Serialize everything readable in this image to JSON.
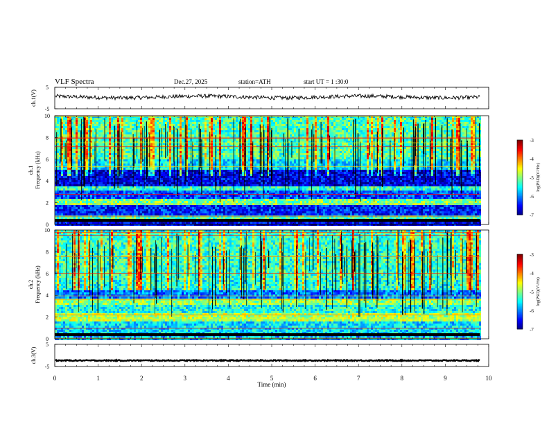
{
  "header": {
    "title": "VLF  Spectra",
    "date": "Dec.27, 2025",
    "station": "station=ATH",
    "start_ut": "start  UT  =    1  :30:0"
  },
  "chart_data": [
    {
      "type": "line",
      "name": "ch1-waveform",
      "ylabel": "ch.1(V)",
      "ylim": [
        -5,
        5
      ],
      "yticks": [
        "5",
        "-5"
      ],
      "xlim": [
        0,
        10
      ],
      "baseline_level": 0.5,
      "clipped_end_min": 9.8
    },
    {
      "type": "heatmap",
      "name": "ch1-spectrogram",
      "ylabel_top": "ch.1",
      "ylabel": "Frequency  (kHz)",
      "ylim": [
        0,
        10
      ],
      "yticks": [
        "0",
        "2",
        "4",
        "6",
        "8",
        "10"
      ],
      "xlim": [
        0,
        10
      ],
      "colorbar": {
        "label": "log(PSD)(V²/Hz)",
        "ticks": [
          "-3",
          "-4",
          "-5",
          "-6",
          "-7"
        ],
        "range": [
          -7,
          -3
        ]
      },
      "bands": [
        {
          "from_khz": 0.0,
          "to_khz": 0.6,
          "level": -6.6
        },
        {
          "from_khz": 0.6,
          "to_khz": 1.0,
          "level": -5.2
        },
        {
          "from_khz": 1.0,
          "to_khz": 1.8,
          "level": -6.4
        },
        {
          "from_khz": 1.8,
          "to_khz": 2.4,
          "level": -5.0
        },
        {
          "from_khz": 2.4,
          "to_khz": 3.2,
          "level": -6.2
        },
        {
          "from_khz": 3.2,
          "to_khz": 3.6,
          "level": -5.3
        },
        {
          "from_khz": 3.6,
          "to_khz": 5.2,
          "level": -6.6
        },
        {
          "from_khz": 5.2,
          "to_khz": 6.0,
          "level": -5.6
        },
        {
          "from_khz": 6.0,
          "to_khz": 10.0,
          "level": -5.2
        }
      ]
    },
    {
      "type": "heatmap",
      "name": "ch2-spectrogram",
      "ylabel_top": "ch.2",
      "ylabel": "Frequency  (kHz)",
      "ylim": [
        0,
        10
      ],
      "yticks": [
        "0",
        "2",
        "4",
        "6",
        "8",
        "10"
      ],
      "xlim": [
        0,
        10
      ],
      "colorbar": {
        "label": "log(PSD)(V²/Hz)",
        "ticks": [
          "-3",
          "-4",
          "-5",
          "-6",
          "-7"
        ],
        "range": [
          -7,
          -3
        ]
      },
      "bands": [
        {
          "from_khz": 0.0,
          "to_khz": 0.4,
          "level": -5.8
        },
        {
          "from_khz": 0.4,
          "to_khz": 1.6,
          "level": -5.6
        },
        {
          "from_khz": 1.6,
          "to_khz": 2.4,
          "level": -4.8
        },
        {
          "from_khz": 2.4,
          "to_khz": 3.2,
          "level": -5.4
        },
        {
          "from_khz": 3.2,
          "to_khz": 3.8,
          "level": -4.9
        },
        {
          "from_khz": 3.8,
          "to_khz": 4.6,
          "level": -6.0
        },
        {
          "from_khz": 4.6,
          "to_khz": 5.6,
          "level": -5.4
        },
        {
          "from_khz": 5.6,
          "to_khz": 10.0,
          "level": -5.3
        }
      ]
    },
    {
      "type": "line",
      "name": "ch3-waveform",
      "ylabel": "ch.3(V)",
      "ylim": [
        -5,
        5
      ],
      "yticks": [
        "5",
        "-5"
      ],
      "xlim": [
        0,
        10
      ],
      "baseline_level": -2.3,
      "clipped_end_min": 9.8
    }
  ],
  "x_axis": {
    "label": "Time  (min)",
    "ticks": [
      "0",
      "1",
      "2",
      "3",
      "4",
      "5",
      "6",
      "7",
      "8",
      "9",
      "10"
    ]
  },
  "colors": {
    "axis": "#000000",
    "background": "#ffffff"
  }
}
